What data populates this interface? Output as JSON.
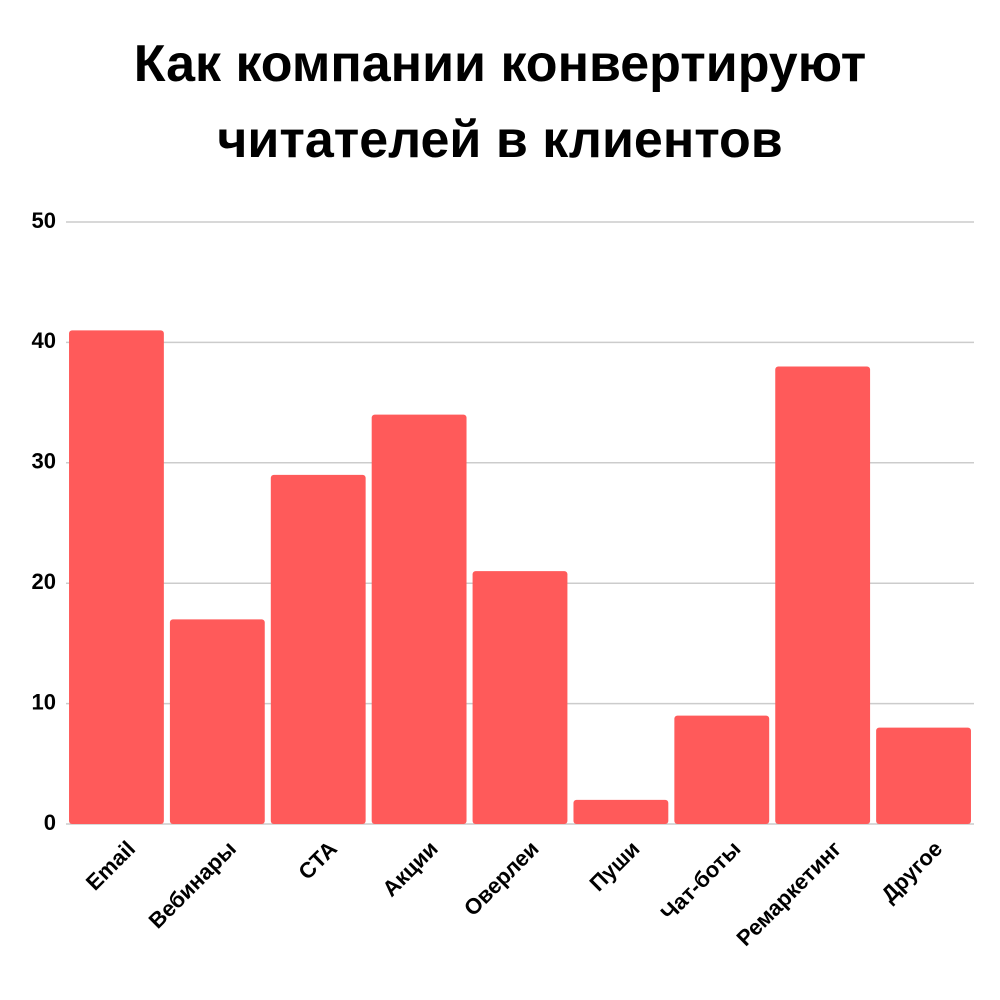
{
  "chart_data": {
    "type": "bar",
    "title": "Как компании конвертируют читателей в клиентов",
    "categories": [
      "Email",
      "Вебинары",
      "CTA",
      "Акции",
      "Оверлеи",
      "Пуши",
      "Чат-боты",
      "Ремаркетинг",
      "Другое"
    ],
    "values": [
      41,
      17,
      29,
      34,
      21,
      2,
      9,
      38,
      8
    ],
    "color": "#ff5a5a",
    "ylim": [
      0,
      50
    ],
    "yticks": [
      0,
      10,
      20,
      30,
      40,
      50
    ],
    "grid": true
  }
}
